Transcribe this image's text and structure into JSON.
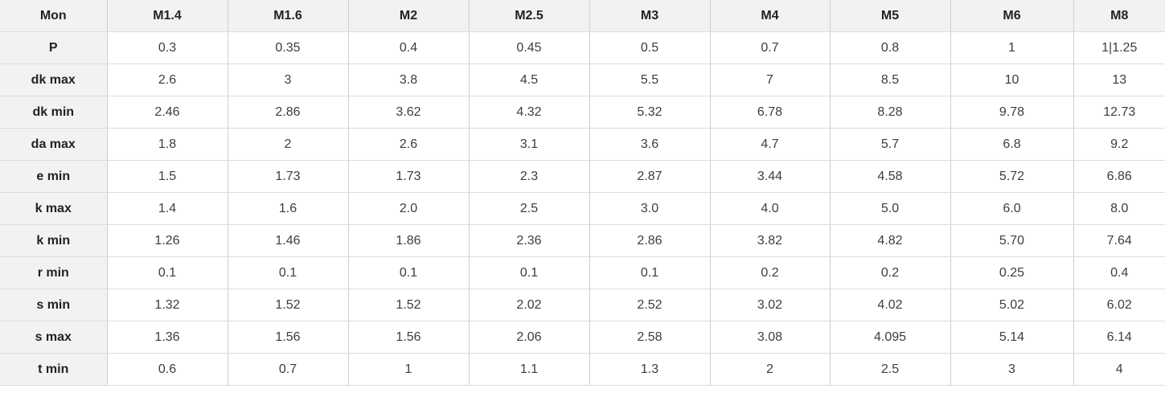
{
  "colors": {
    "header_bg": "#f2f2f2",
    "border_vertical": "#cfcfcf",
    "border_horizontal": "#dcdcdc",
    "header_text": "#222222",
    "cell_text": "#3d3d3d"
  },
  "chart_data": {
    "type": "table",
    "title": "",
    "corner_label": "Mon",
    "columns": [
      "M1.4",
      "M1.6",
      "M2",
      "M2.5",
      "M3",
      "M4",
      "M5",
      "M6",
      "M8"
    ],
    "rows": [
      {
        "label": "P",
        "values": [
          "0.3",
          "0.35",
          "0.4",
          "0.45",
          "0.5",
          "0.7",
          "0.8",
          "1",
          "1|1.25"
        ]
      },
      {
        "label": "dk max",
        "values": [
          "2.6",
          "3",
          "3.8",
          "4.5",
          "5.5",
          "7",
          "8.5",
          "10",
          "13"
        ]
      },
      {
        "label": "dk min",
        "values": [
          "2.46",
          "2.86",
          "3.62",
          "4.32",
          "5.32",
          "6.78",
          "8.28",
          "9.78",
          "12.73"
        ]
      },
      {
        "label": "da max",
        "values": [
          "1.8",
          "2",
          "2.6",
          "3.1",
          "3.6",
          "4.7",
          "5.7",
          "6.8",
          "9.2"
        ]
      },
      {
        "label": "e min",
        "values": [
          "1.5",
          "1.73",
          "1.73",
          "2.3",
          "2.87",
          "3.44",
          "4.58",
          "5.72",
          "6.86"
        ]
      },
      {
        "label": "k max",
        "values": [
          "1.4",
          "1.6",
          "2.0",
          "2.5",
          "3.0",
          "4.0",
          "5.0",
          "6.0",
          "8.0"
        ]
      },
      {
        "label": "k min",
        "values": [
          "1.26",
          "1.46",
          "1.86",
          "2.36",
          "2.86",
          "3.82",
          "4.82",
          "5.70",
          "7.64"
        ]
      },
      {
        "label": "r min",
        "values": [
          "0.1",
          "0.1",
          "0.1",
          "0.1",
          "0.1",
          "0.2",
          "0.2",
          "0.25",
          "0.4"
        ]
      },
      {
        "label": "s min",
        "values": [
          "1.32",
          "1.52",
          "1.52",
          "2.02",
          "2.52",
          "3.02",
          "4.02",
          "5.02",
          "6.02"
        ]
      },
      {
        "label": "s max",
        "values": [
          "1.36",
          "1.56",
          "1.56",
          "2.06",
          "2.58",
          "3.08",
          "4.095",
          "5.14",
          "6.14"
        ]
      },
      {
        "label": "t min",
        "values": [
          "0.6",
          "0.7",
          "1",
          "1.1",
          "1.3",
          "2",
          "2.5",
          "3",
          "4"
        ]
      }
    ]
  }
}
